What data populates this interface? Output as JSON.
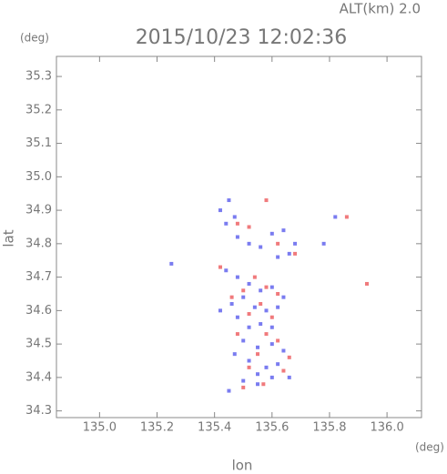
{
  "chart_data": {
    "type": "scatter",
    "title": "2015/10/23 12:02:36",
    "subtitle": "ALT(km) 2.0",
    "x_label": "lon",
    "y_label": "lat",
    "x_unit": "(deg)",
    "y_unit": "(deg)",
    "xlim": [
      134.85,
      136.12
    ],
    "ylim": [
      34.28,
      35.36
    ],
    "xticks": [
      {
        "value": 135,
        "label": "135.0"
      },
      135.2,
      135.4,
      135.6,
      135.8,
      {
        "value": 136,
        "label": "136.0"
      }
    ],
    "yticks": [
      34.3,
      34.4,
      34.5,
      34.6,
      34.7,
      34.8,
      34.9,
      {
        "value": 35,
        "label": "35.0"
      },
      35.1,
      35.2,
      35.3
    ],
    "series": [
      {
        "color": "#7a7cf0",
        "x": [
          135.42,
          135.45,
          135.47,
          135.44,
          135.48,
          135.52,
          135.56,
          135.6,
          135.64,
          135.68,
          135.66,
          135.62,
          135.25,
          135.44,
          135.48,
          135.52,
          135.56,
          135.6,
          135.64,
          135.5,
          135.46,
          135.54,
          135.58,
          135.62,
          135.48,
          135.52,
          135.56,
          135.6,
          135.5,
          135.55,
          135.6,
          135.64,
          135.52,
          135.58,
          135.62,
          135.55,
          135.6,
          135.5,
          135.45,
          135.55,
          135.66,
          135.42,
          135.82,
          135.78,
          135.47
        ],
        "values": [
          34.9,
          34.93,
          34.88,
          34.86,
          34.82,
          34.8,
          34.79,
          34.83,
          34.84,
          34.8,
          34.77,
          34.76,
          34.74,
          34.72,
          34.7,
          34.68,
          34.66,
          34.67,
          34.64,
          34.64,
          34.62,
          34.61,
          34.6,
          34.61,
          34.58,
          34.55,
          34.56,
          34.55,
          34.51,
          34.49,
          34.5,
          34.48,
          34.45,
          34.43,
          34.44,
          34.41,
          34.4,
          34.39,
          34.36,
          34.38,
          34.4,
          34.6,
          34.88,
          34.8,
          34.47
        ]
      },
      {
        "color": "#f07a7c",
        "x": [
          135.58,
          135.48,
          135.52,
          135.62,
          135.68,
          135.86,
          135.42,
          135.54,
          135.58,
          135.62,
          135.5,
          135.46,
          135.56,
          135.52,
          135.6,
          135.48,
          135.58,
          135.62,
          135.55,
          135.52,
          135.64,
          135.93,
          135.5,
          135.57,
          135.66
        ],
        "values": [
          34.93,
          34.86,
          34.85,
          34.8,
          34.77,
          34.88,
          34.73,
          34.7,
          34.67,
          34.65,
          34.66,
          34.64,
          34.62,
          34.59,
          34.58,
          34.53,
          34.53,
          34.51,
          34.47,
          34.43,
          34.42,
          34.68,
          34.37,
          34.38,
          34.46
        ]
      }
    ]
  }
}
